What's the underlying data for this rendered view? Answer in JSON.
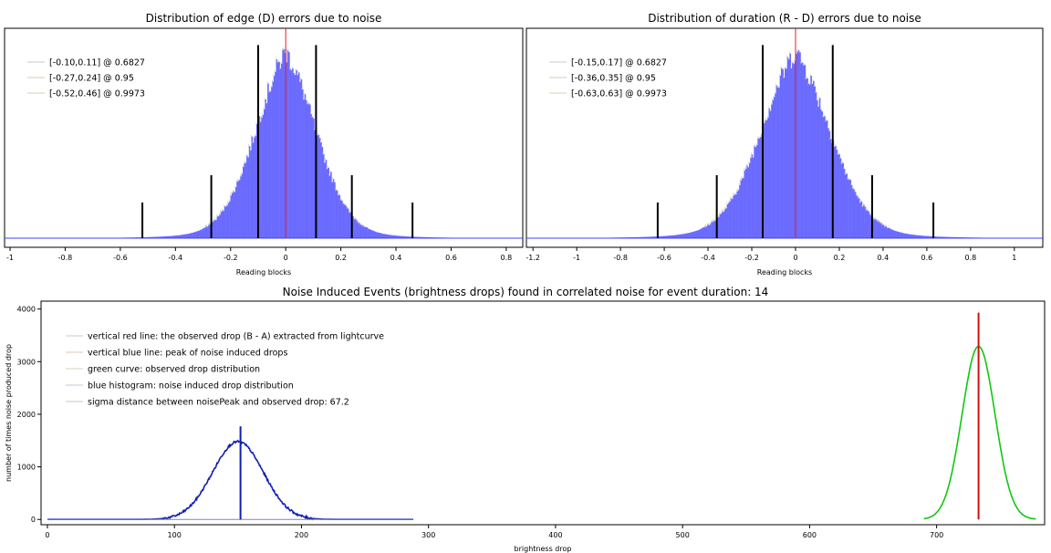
{
  "chart_data": [
    {
      "type": "bar",
      "title": "Distribution of edge (D) errors due to noise",
      "xlabel": "Reading blocks",
      "ylabel": "",
      "xlim": [
        -1.02,
        0.86
      ],
      "xticks": [
        -1,
        -0.8,
        -0.6,
        -0.4,
        -0.2,
        0,
        0.2,
        0.4,
        0.6,
        0.8
      ],
      "grid": false,
      "legend_position": "top-left",
      "distribution": {
        "mean": 0.0,
        "sd": 0.115
      },
      "center_line": {
        "x": 0.0,
        "color": "#e02020"
      },
      "interval_markers": [
        {
          "x": -0.52,
          "level": 0.9973,
          "height": 0.17
        },
        {
          "x": -0.27,
          "level": 0.95,
          "height": 0.3
        },
        {
          "x": -0.1,
          "level": 0.6827,
          "height": 0.92
        },
        {
          "x": 0.11,
          "level": 0.6827,
          "height": 0.92
        },
        {
          "x": 0.24,
          "level": 0.95,
          "height": 0.3
        },
        {
          "x": 0.46,
          "level": 0.9973,
          "height": 0.17
        }
      ],
      "legend": [
        "[-0.10,0.11] @ 0.6827",
        "[-0.27,0.24] @ 0.95",
        "[-0.52,0.46] @ 0.9973"
      ]
    },
    {
      "type": "bar",
      "title": "Distribution of duration (R - D) errors due to noise",
      "xlabel": "Reading blocks",
      "ylabel": "",
      "xlim": [
        -1.23,
        1.13
      ],
      "xticks": [
        -1.2,
        -1,
        -0.8,
        -0.6,
        -0.4,
        -0.2,
        0,
        0.2,
        0.4,
        0.6,
        0.8,
        1
      ],
      "grid": false,
      "legend_position": "top-left",
      "distribution": {
        "mean": 0.0,
        "sd": 0.165
      },
      "center_line": {
        "x": 0.0,
        "color": "#e02020"
      },
      "interval_markers": [
        {
          "x": -0.63,
          "level": 0.9973,
          "height": 0.17
        },
        {
          "x": -0.36,
          "level": 0.95,
          "height": 0.3
        },
        {
          "x": -0.15,
          "level": 0.6827,
          "height": 0.92
        },
        {
          "x": 0.17,
          "level": 0.6827,
          "height": 0.92
        },
        {
          "x": 0.35,
          "level": 0.95,
          "height": 0.3
        },
        {
          "x": 0.63,
          "level": 0.9973,
          "height": 0.17
        }
      ],
      "legend": [
        "[-0.15,0.17] @ 0.6827",
        "[-0.36,0.35] @ 0.95",
        "[-0.63,0.63] @ 0.9973"
      ]
    },
    {
      "type": "line",
      "title": "Noise Induced Events (brightness drops) found in correlated noise for event duration: 14",
      "xlabel": "brightness drop",
      "ylabel": "number of times noise produced drop",
      "xlim": [
        -5,
        785
      ],
      "ylim": [
        -100,
        4150
      ],
      "xticks": [
        0,
        100,
        200,
        300,
        400,
        500,
        600,
        700
      ],
      "yticks": [
        0,
        1000,
        2000,
        3000,
        4000
      ],
      "grid": false,
      "legend_position": "top-left",
      "series": [
        {
          "color": "#1020b0",
          "peak_x": 150,
          "peak_y": 1480,
          "sd": 20,
          "range": [
            0,
            288
          ]
        },
        {
          "color": "#10c810",
          "peak_x": 733,
          "peak_y": 3290,
          "sd": 13,
          "range": [
            690,
            778
          ]
        }
      ],
      "peak_line": {
        "x": 152,
        "top": 1770,
        "color": "#1020b0"
      },
      "observed_line": {
        "x": 733,
        "top": 3930,
        "color": "#d01010"
      },
      "legend": [
        "vertical red line: the observed drop (B - A) extracted from lightcurve",
        "vertical blue line: peak of noise induced drops",
        "green curve: observed drop distribution",
        "blue histogram: noise induced drop distribution",
        "sigma distance between noisePeak and observed drop: 67.2"
      ]
    }
  ]
}
